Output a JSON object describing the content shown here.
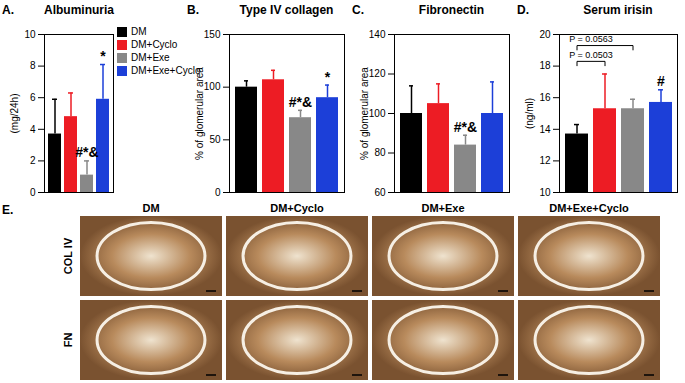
{
  "chart_data": [
    {
      "type": "bar",
      "panel": "A.",
      "title": "Albuminuria",
      "ylabel": "(mg/24h)",
      "categories": [
        "DM",
        "DM+Cyclo",
        "DM+Exe",
        "DM+Exe+Cyclo"
      ],
      "values": [
        3.7,
        4.8,
        1.1,
        5.9
      ],
      "errors": [
        2.2,
        1.5,
        0.9,
        2.2
      ],
      "colors": [
        "#000000",
        "#ed1c24",
        "#888888",
        "#1c3fd8"
      ],
      "ylim": [
        0,
        10
      ],
      "yticks": [
        0,
        2,
        4,
        6,
        8,
        10
      ],
      "tick_labels": "y",
      "legend": "right",
      "annotations": [
        {
          "category": "DM+Exe",
          "text": "#*&"
        },
        {
          "category": "DM+Exe+Cyclo",
          "text": "*"
        }
      ]
    },
    {
      "type": "bar",
      "panel": "B.",
      "title": "Type IV collagen",
      "ylabel": "% of glomerular area",
      "categories": [
        "DM",
        "DM+Cyclo",
        "DM+Exe",
        "DM+Exe+Cyclo"
      ],
      "values": [
        100,
        107,
        71,
        90
      ],
      "errors": [
        6,
        9,
        7,
        12
      ],
      "colors": [
        "#000000",
        "#ed1c24",
        "#888888",
        "#1c3fd8"
      ],
      "ylim": [
        0,
        150
      ],
      "yticks": [
        0,
        50,
        100,
        150
      ],
      "tick_labels": "y",
      "annotations": [
        {
          "category": "DM+Exe",
          "text": "#*&"
        },
        {
          "category": "DM+Exe+Cyclo",
          "text": "*"
        }
      ]
    },
    {
      "type": "bar",
      "panel": "C.",
      "title": "Fibronectin",
      "ylabel": "% of glomerular area",
      "categories": [
        "DM",
        "DM+Cyclo",
        "DM+Exe",
        "DM+Exe+Cyclo"
      ],
      "values": [
        100,
        105,
        84,
        100
      ],
      "errors": [
        14,
        10,
        5,
        16
      ],
      "colors": [
        "#000000",
        "#ed1c24",
        "#888888",
        "#1c3fd8"
      ],
      "ylim": [
        60,
        140
      ],
      "yticks": [
        60,
        80,
        100,
        120,
        140
      ],
      "tick_labels": "y",
      "annotations": [
        {
          "category": "DM+Exe",
          "text": "#*&"
        }
      ]
    },
    {
      "type": "bar",
      "panel": "D.",
      "title": "Serum irisin",
      "ylabel": "(ng/ml)",
      "categories": [
        "DM",
        "DM+Cyclo",
        "DM+Exe",
        "DM+Exe+Cyclo"
      ],
      "values": [
        13.7,
        15.3,
        15.3,
        15.7
      ],
      "errors": [
        0.6,
        2.2,
        0.6,
        0.8
      ],
      "colors": [
        "#000000",
        "#ed1c24",
        "#888888",
        "#1c3fd8"
      ],
      "ylim": [
        10,
        20
      ],
      "yticks": [
        10,
        12,
        14,
        16,
        18,
        20
      ],
      "tick_labels": "y",
      "annotations": [
        {
          "category": "DM+Exe+Cyclo",
          "text": "#"
        }
      ],
      "comparisons": [
        {
          "from": "DM",
          "to": "DM+Cyclo",
          "text": "P = 0.0503"
        },
        {
          "from": "DM",
          "to": "DM+Exe",
          "text": "P = 0.0563"
        }
      ]
    }
  ],
  "image_panel": {
    "label": "E.",
    "columns": [
      "DM",
      "DM+Cyclo",
      "DM+Exe",
      "DM+Exe+Cyclo"
    ],
    "rows": [
      "COL IV",
      "FN"
    ]
  }
}
